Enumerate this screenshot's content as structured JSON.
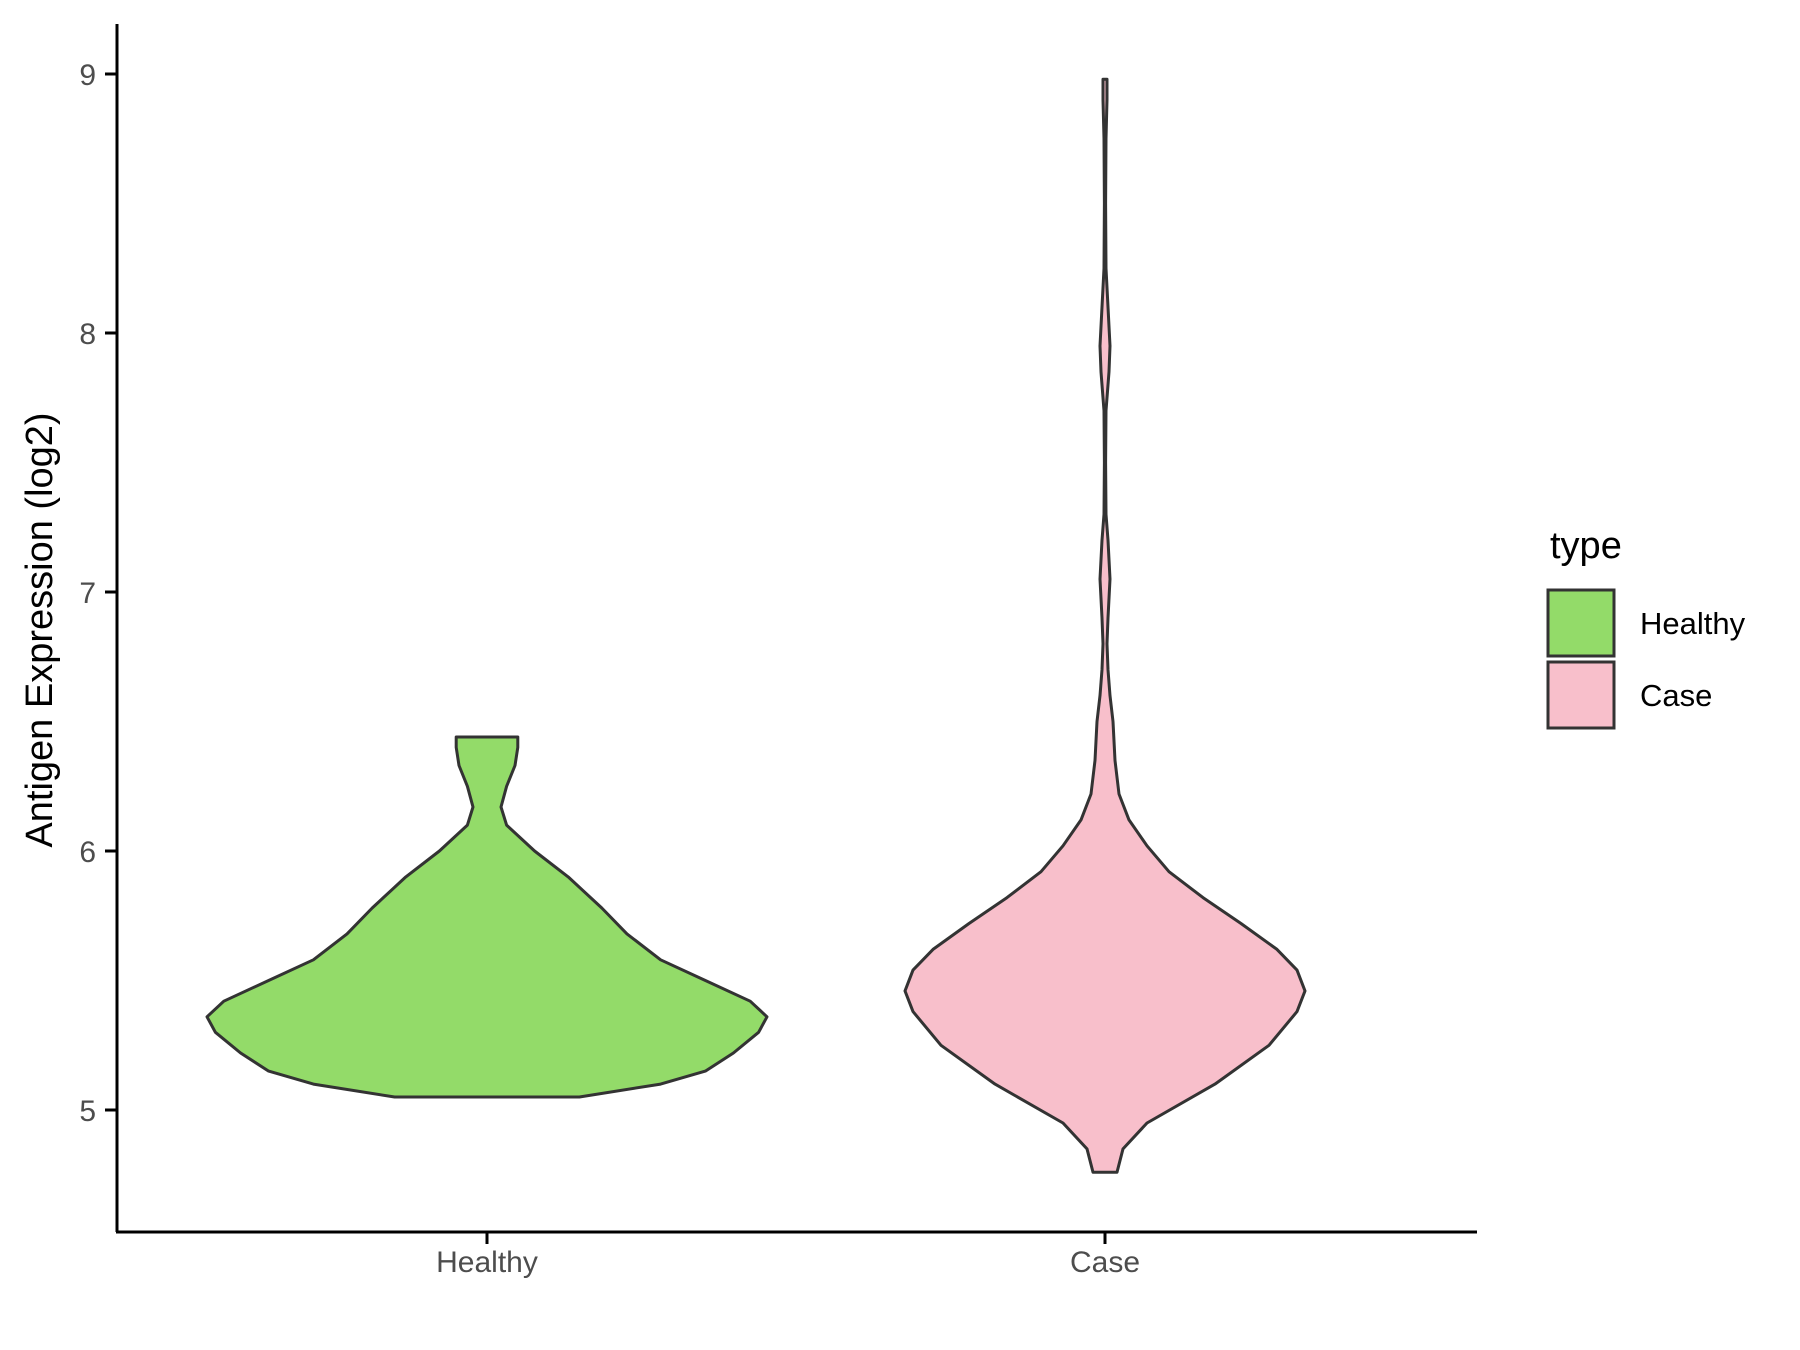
{
  "chart_data": {
    "type": "violin",
    "title": "",
    "xlabel": "",
    "ylabel": "Antigen Expression (log2)",
    "ylim": [
      4.55,
      9.2
    ],
    "yticks": [
      5,
      6,
      7,
      8,
      9
    ],
    "categories": [
      "Healthy",
      "Case"
    ],
    "grid": false,
    "legend": {
      "title": "type",
      "position": "right",
      "entries": [
        {
          "label": "Healthy",
          "color": "#93DB69"
        },
        {
          "label": "Case",
          "color": "#F8BFCB"
        }
      ]
    },
    "series": [
      {
        "category": "Healthy",
        "color": "#93DB69",
        "min": 5.05,
        "max": 6.44,
        "density_profile": [
          [
            5.05,
            0.33
          ],
          [
            5.1,
            0.62
          ],
          [
            5.15,
            0.78
          ],
          [
            5.22,
            0.88
          ],
          [
            5.3,
            0.97
          ],
          [
            5.36,
            1.0
          ],
          [
            5.42,
            0.94
          ],
          [
            5.5,
            0.78
          ],
          [
            5.58,
            0.62
          ],
          [
            5.68,
            0.5
          ],
          [
            5.78,
            0.41
          ],
          [
            5.9,
            0.29
          ],
          [
            6.0,
            0.17
          ],
          [
            6.1,
            0.07
          ],
          [
            6.17,
            0.05
          ],
          [
            6.25,
            0.07
          ],
          [
            6.33,
            0.1
          ],
          [
            6.4,
            0.11
          ],
          [
            6.44,
            0.11
          ]
        ]
      },
      {
        "category": "Case",
        "color": "#F8BFCB",
        "min": 4.76,
        "max": 8.98,
        "density_profile": [
          [
            4.76,
            0.06
          ],
          [
            4.85,
            0.09
          ],
          [
            4.95,
            0.21
          ],
          [
            5.1,
            0.55
          ],
          [
            5.25,
            0.82
          ],
          [
            5.38,
            0.96
          ],
          [
            5.46,
            1.0
          ],
          [
            5.54,
            0.96
          ],
          [
            5.62,
            0.86
          ],
          [
            5.72,
            0.68
          ],
          [
            5.82,
            0.49
          ],
          [
            5.92,
            0.32
          ],
          [
            6.02,
            0.21
          ],
          [
            6.12,
            0.12
          ],
          [
            6.22,
            0.07
          ],
          [
            6.35,
            0.05
          ],
          [
            6.5,
            0.04
          ],
          [
            6.6,
            0.025
          ],
          [
            6.7,
            0.015
          ],
          [
            6.8,
            0.01
          ],
          [
            6.9,
            0.015
          ],
          [
            7.05,
            0.025
          ],
          [
            7.2,
            0.015
          ],
          [
            7.3,
            0.005
          ],
          [
            7.5,
            0.003
          ],
          [
            7.7,
            0.005
          ],
          [
            7.85,
            0.02
          ],
          [
            7.95,
            0.025
          ],
          [
            8.1,
            0.015
          ],
          [
            8.25,
            0.005
          ],
          [
            8.5,
            0.003
          ],
          [
            8.75,
            0.005
          ],
          [
            8.9,
            0.01
          ],
          [
            8.98,
            0.01
          ]
        ]
      }
    ]
  }
}
